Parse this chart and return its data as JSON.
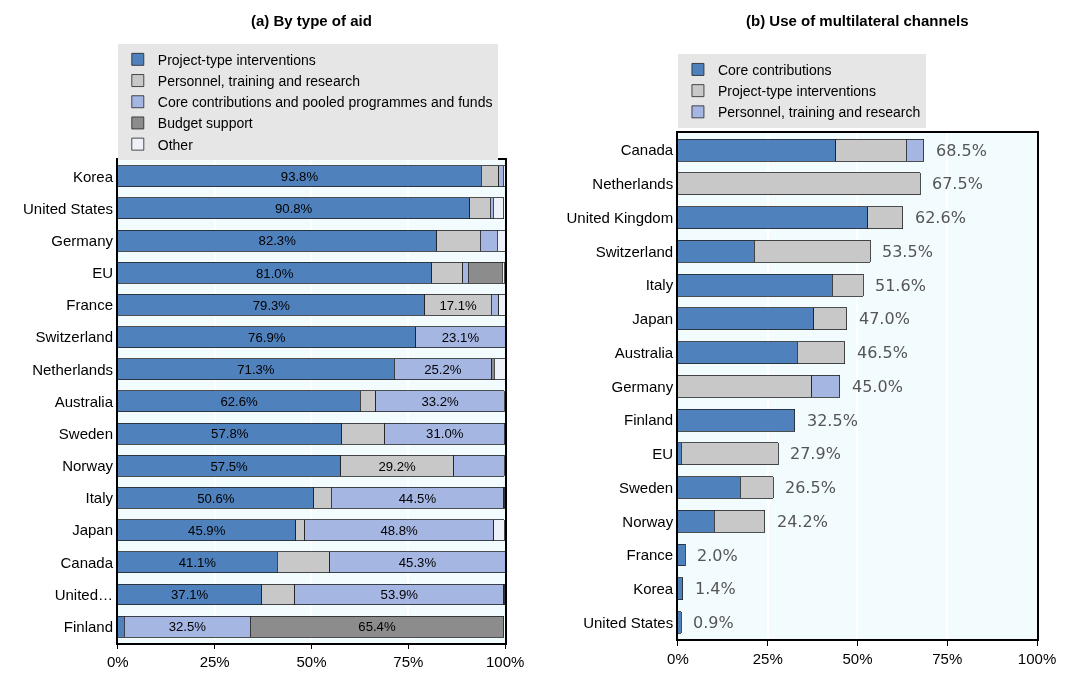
{
  "chart_data": [
    {
      "type": "bar",
      "title": "(a) By type of aid",
      "orientation": "horizontal",
      "stacked": true,
      "categories": [
        "Korea",
        "United States",
        "Germany",
        "EU",
        "France",
        "Switzerland",
        "Netherlands",
        "Australia",
        "Sweden",
        "Norway",
        "Italy",
        "Japan",
        "Canada",
        "United…",
        "Finland"
      ],
      "series": [
        {
          "name": "Project-type interventions",
          "color": "#4f81bd",
          "values": [
            93.8,
            90.8,
            82.3,
            81.0,
            79.3,
            76.9,
            71.3,
            62.6,
            57.8,
            57.5,
            50.6,
            45.9,
            41.1,
            37.1,
            1.7
          ],
          "value_labels": [
            "93.8%",
            "90.8%",
            "82.3%",
            "81.0%",
            "79.3%",
            "76.9%",
            "71.3%",
            "62.6%",
            "57.8%",
            "57.5%",
            "50.6%",
            "45.9%",
            "41.1%",
            "37.1%",
            null
          ]
        },
        {
          "name": "Personnel, training and research",
          "color": "#c8c8c8",
          "values": [
            4.6,
            5.4,
            11.2,
            8.0,
            17.1,
            null,
            null,
            4.0,
            11.1,
            29.2,
            4.5,
            2.3,
            13.6,
            8.6,
            null
          ],
          "value_labels": [
            null,
            null,
            null,
            null,
            "17.1%",
            null,
            null,
            null,
            null,
            "29.2%",
            null,
            null,
            null,
            null,
            null
          ]
        },
        {
          "name": "Core contributions and pooled programmes and funds",
          "color": "#a6b6e3",
          "values": [
            1.1,
            0.7,
            4.4,
            1.5,
            1.9,
            23.1,
            25.2,
            33.2,
            31.0,
            13.1,
            44.5,
            48.8,
            45.3,
            53.9,
            32.5
          ],
          "value_labels": [
            null,
            null,
            null,
            null,
            null,
            "23.1%",
            "25.2%",
            "33.2%",
            "31.0%",
            null,
            "44.5%",
            "48.8%",
            "45.3%",
            "53.9%",
            "32.5%"
          ]
        },
        {
          "name": "Budget support",
          "color": "#8c8c8c",
          "values": [
            null,
            null,
            null,
            8.8,
            null,
            null,
            0.7,
            null,
            null,
            null,
            0.3,
            null,
            null,
            0.3,
            65.4
          ],
          "value_labels": [
            null,
            null,
            null,
            null,
            null,
            null,
            null,
            null,
            null,
            null,
            null,
            null,
            null,
            null,
            "65.4%"
          ]
        },
        {
          "name": "Other",
          "color": "#eef1f8",
          "values": [
            0.5,
            2.7,
            2.1,
            0.6,
            1.7,
            null,
            2.8,
            null,
            null,
            null,
            null,
            2.7,
            null,
            null,
            null
          ]
        }
      ],
      "xlim": [
        0,
        100
      ],
      "xticks": [
        {
          "value": 0,
          "label": "0%"
        },
        {
          "value": 25,
          "label": "25%"
        },
        {
          "value": 50,
          "label": "50%"
        },
        {
          "value": 75,
          "label": "75%"
        },
        {
          "value": 100,
          "label": "100%"
        }
      ],
      "grid": "x",
      "legend": "top"
    },
    {
      "type": "bar",
      "title": "(b) Use of multilateral channels",
      "orientation": "horizontal",
      "stacked": true,
      "categories": [
        "Canada",
        "Netherlands",
        "United Kingdom",
        "Switzerland",
        "Italy",
        "Japan",
        "Australia",
        "Germany",
        "Finland",
        "EU",
        "Sweden",
        "Norway",
        "France",
        "Korea",
        "United States"
      ],
      "series": [
        {
          "name": "Core contributions",
          "color": "#4f81bd",
          "values": [
            43.9,
            null,
            52.8,
            21.3,
            43.0,
            37.8,
            33.2,
            null,
            32.5,
            0.9,
            17.3,
            10.1,
            2.0,
            1.4,
            0.9
          ]
        },
        {
          "name": "Project-type interventions",
          "color": "#c8c8c8",
          "values": [
            19.7,
            67.5,
            9.8,
            32.2,
            8.6,
            9.2,
            13.3,
            37.2,
            null,
            27.0,
            9.2,
            14.1,
            null,
            null,
            null
          ]
        },
        {
          "name": "Personnel, training and research",
          "color": "#a6b6e3",
          "values": [
            4.9,
            null,
            null,
            null,
            null,
            null,
            null,
            7.8,
            null,
            null,
            null,
            null,
            null,
            null,
            null
          ]
        }
      ],
      "totals": [
        "68.5%",
        "67.5%",
        "62.6%",
        "53.5%",
        "51.6%",
        "47.0%",
        "46.5%",
        "45.0%",
        "32.5%",
        "27.9%",
        "26.5%",
        "24.2%",
        "2.0%",
        "1.4%",
        "0.9%"
      ],
      "xlim": [
        0,
        100
      ],
      "xticks": [
        {
          "value": 0,
          "label": "0%"
        },
        {
          "value": 25,
          "label": "25%"
        },
        {
          "value": 50,
          "label": "50%"
        },
        {
          "value": 75,
          "label": "75%"
        },
        {
          "value": 100,
          "label": "100%"
        }
      ],
      "grid": "x",
      "legend": "top"
    }
  ]
}
